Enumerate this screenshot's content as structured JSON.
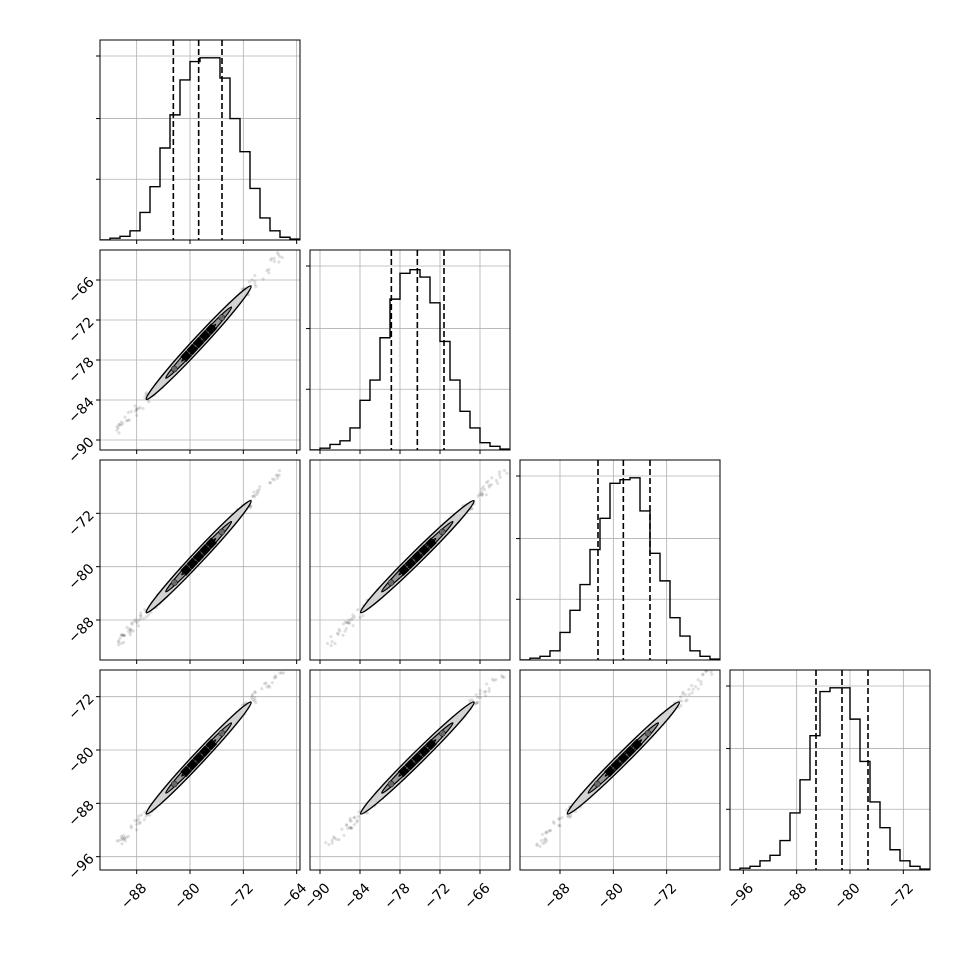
{
  "chart_data": {
    "type": "corner",
    "title": "",
    "grid": true,
    "n_params": 4,
    "colors": {
      "line": "#000000",
      "grid": "#b0b0b0",
      "fill_light": "#d3d3d3",
      "fill_mid": "#9a9a9a",
      "fill_dark": "#5a5a5a"
    },
    "params": [
      {
        "label": "",
        "range": [
          -93.5,
          -63.5
        ],
        "ticks": [
          -88,
          -80,
          -72,
          -64
        ],
        "tick_labels": [
          "−88",
          "−80",
          "−72",
          "−64"
        ],
        "quantiles": [
          -82.5,
          -78.7,
          -75.2
        ]
      },
      {
        "label": "",
        "range": [
          -91.5,
          -61.5
        ],
        "ticks": [
          -90,
          -84,
          -78,
          -72,
          -66
        ],
        "tick_labels": [
          "−90",
          "−84",
          "−78",
          "−72",
          "−66"
        ],
        "quantiles": [
          -79.3,
          -75.4,
          -71.4
        ]
      },
      {
        "label": "",
        "range": [
          -94,
          -64
        ],
        "ticks": [
          -88,
          -80,
          -72
        ],
        "tick_labels": [
          "−88",
          "−80",
          "−72"
        ],
        "quantiles": [
          -82.3,
          -78.5,
          -74.5
        ]
      },
      {
        "label": "",
        "range": [
          -98,
          -68
        ],
        "ticks": [
          -96,
          -88,
          -80,
          -72
        ],
        "tick_labels": [
          "−96",
          "−88",
          "−80",
          "−72"
        ],
        "quantiles": [
          -85.1,
          -81.2,
          -77.3
        ]
      }
    ],
    "histograms": [
      [
        0.0,
        0.01,
        0.02,
        0.05,
        0.15,
        0.29,
        0.5,
        0.68,
        0.87,
        0.97,
        0.99,
        0.99,
        0.88,
        0.66,
        0.48,
        0.28,
        0.12,
        0.05,
        0.015,
        0.005
      ],
      [
        0.0,
        0.01,
        0.03,
        0.05,
        0.12,
        0.27,
        0.38,
        0.61,
        0.82,
        0.96,
        0.98,
        0.94,
        0.8,
        0.59,
        0.38,
        0.21,
        0.12,
        0.04,
        0.02,
        0.005
      ],
      [
        0.0,
        0.01,
        0.02,
        0.05,
        0.15,
        0.27,
        0.41,
        0.6,
        0.77,
        0.96,
        0.98,
        0.99,
        0.81,
        0.58,
        0.43,
        0.23,
        0.13,
        0.05,
        0.02,
        0.005
      ],
      [
        0.0,
        0.01,
        0.02,
        0.05,
        0.08,
        0.16,
        0.31,
        0.49,
        0.73,
        0.97,
        0.99,
        0.99,
        0.82,
        0.59,
        0.37,
        0.23,
        0.11,
        0.05,
        0.02,
        0.005
      ]
    ],
    "hist_ytick_fractions": [
      0.33,
      0.66,
      1.0
    ]
  }
}
